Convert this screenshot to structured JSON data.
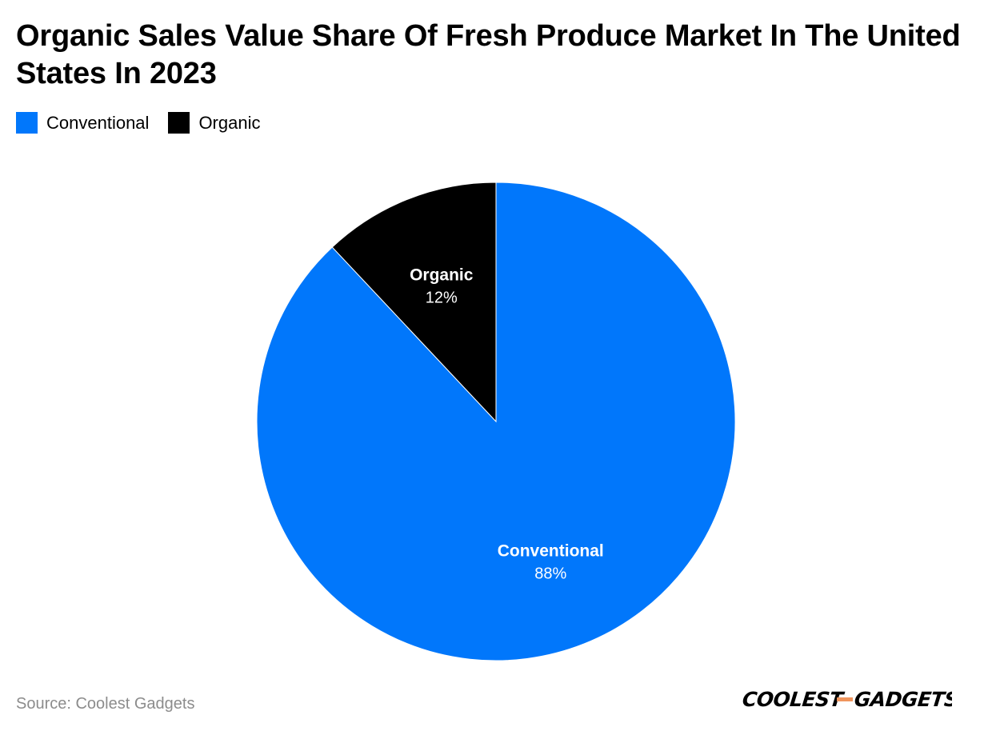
{
  "chart_data": {
    "type": "pie",
    "title": "Organic Sales Value Share Of Fresh Produce Market In The United States In 2023",
    "slices": [
      {
        "label": "Conventional",
        "value": 88,
        "value_label": "88%",
        "color": "#0177FB"
      },
      {
        "label": "Organic",
        "value": 12,
        "value_label": "12%",
        "color": "#000000"
      }
    ],
    "legend": {
      "placement": "top-left",
      "entries": [
        "Conventional",
        "Organic"
      ]
    }
  },
  "source": "Source: Coolest Gadgets",
  "brand": {
    "name": "COOLEST-GADGETS",
    "accent_color": "#F0955D"
  }
}
